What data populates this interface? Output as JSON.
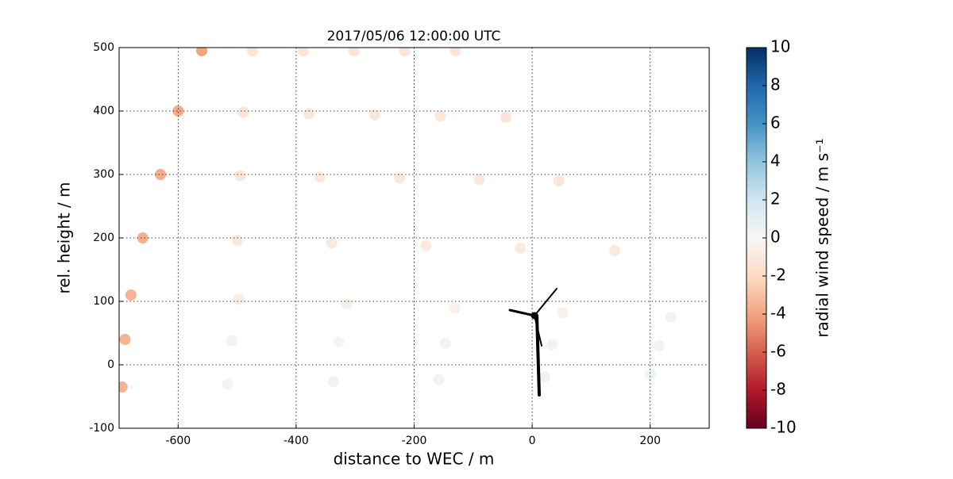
{
  "chart_data": {
    "type": "scatter",
    "title": "2017/05/06 12:00:00 UTC",
    "x_label": "distance to WEC / m",
    "y_label": "rel. height / m",
    "colorbar_label": "radial wind speed / m s⁻¹",
    "xlim": [
      -700,
      300
    ],
    "xticks": [
      -600,
      -400,
      -200,
      0,
      200
    ],
    "ylim": [
      -100,
      500
    ],
    "yticks": [
      -100,
      0,
      100,
      200,
      300,
      400,
      500
    ],
    "clim": [
      -10,
      10
    ],
    "cticks": [
      -10,
      -8,
      -6,
      -4,
      -2,
      0,
      2,
      4,
      6,
      8,
      10
    ],
    "colormap": [
      "#67001f",
      "#b2182b",
      "#d6604d",
      "#f4a582",
      "#fddbc7",
      "#f7f7f7",
      "#d1e5f0",
      "#92c5de",
      "#4393c3",
      "#2166ac",
      "#053061"
    ],
    "grid": true,
    "x": [
      -695,
      -516,
      -337,
      -158,
      21,
      200,
      -690,
      -509,
      -328,
      -147,
      34,
      215,
      -680,
      -497,
      -314,
      -131,
      52,
      235,
      -660,
      -500,
      -340,
      -180,
      -20,
      140,
      -630,
      -495,
      -360,
      -225,
      -90,
      45,
      -600,
      -489,
      -378,
      -267,
      -156,
      -45,
      -560,
      -474,
      -388,
      -302,
      -216,
      -130
    ],
    "y": [
      -35,
      -31,
      -27,
      -23,
      -19,
      -15,
      40,
      38,
      36,
      34,
      32,
      30,
      110,
      103,
      96,
      89,
      82,
      75,
      200,
      196,
      192,
      188,
      184,
      180,
      300,
      298,
      296,
      294,
      292,
      290,
      400,
      398,
      396,
      394,
      392,
      390,
      495,
      495,
      495,
      495,
      495,
      495
    ],
    "values": [
      -3.5,
      0.3,
      0.4,
      0.5,
      0.6,
      0.5,
      -3.5,
      -0.3,
      0.2,
      0.4,
      0.5,
      0.4,
      -3.5,
      -0.8,
      -0.6,
      -0.5,
      -0.4,
      -0.5,
      -3.6,
      -1.0,
      -1.0,
      -0.9,
      -0.9,
      -1.0,
      -3.7,
      -1.2,
      -1.1,
      -1.1,
      -1.1,
      -1.2,
      -3.8,
      -1.3,
      -1.2,
      -1.2,
      -1.2,
      -1.3,
      -4,
      -1.3,
      -1.3,
      -1.3,
      -1.3,
      -1.3
    ]
  }
}
